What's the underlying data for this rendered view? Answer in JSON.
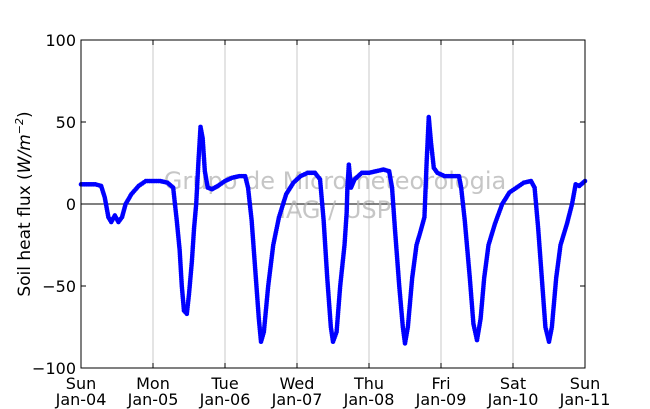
{
  "chart_data": {
    "type": "scatter",
    "title": "",
    "ylabel": "Soil heat flux (W/m⁻²)",
    "ylabel_text": "Soil heat flux (",
    "ylabel_math": "W/m",
    "ylabel_exp": "−2",
    "ylabel_close": ")",
    "xlabel": "",
    "ylim": [
      -100,
      100
    ],
    "xlim": [
      0,
      7
    ],
    "yticks": [
      {
        "value": 100,
        "label": "100"
      },
      {
        "value": 50,
        "label": "50"
      },
      {
        "value": 0,
        "label": "0"
      },
      {
        "value": -50,
        "label": "−50"
      },
      {
        "value": -100,
        "label": "−100"
      }
    ],
    "xticks": [
      {
        "value": 0,
        "day": "Sun",
        "date": "Jan-04"
      },
      {
        "value": 1,
        "day": "Mon",
        "date": "Jan-05"
      },
      {
        "value": 2,
        "day": "Tue",
        "date": "Jan-06"
      },
      {
        "value": 3,
        "day": "Wed",
        "date": "Jan-07"
      },
      {
        "value": 4,
        "day": "Thu",
        "date": "Jan-08"
      },
      {
        "value": 5,
        "day": "Fri",
        "date": "Jan-09"
      },
      {
        "value": 6,
        "day": "Sat",
        "date": "Jan-10"
      },
      {
        "value": 7,
        "day": "Sun",
        "date": "Jan-11"
      }
    ],
    "grid": "vertical",
    "zero_line": true,
    "watermark_lines": [
      "Grupo de Micrometeorologia",
      "IAG / USP"
    ],
    "series": [
      {
        "color": "#0000ff",
        "marker": "circle",
        "points": [
          [
            0.0,
            12
          ],
          [
            0.1,
            12
          ],
          [
            0.2,
            12
          ],
          [
            0.28,
            11
          ],
          [
            0.33,
            4
          ],
          [
            0.38,
            -8
          ],
          [
            0.42,
            -11
          ],
          [
            0.47,
            -7
          ],
          [
            0.52,
            -11
          ],
          [
            0.57,
            -8
          ],
          [
            0.62,
            0
          ],
          [
            0.7,
            6
          ],
          [
            0.8,
            11
          ],
          [
            0.9,
            14
          ],
          [
            1.0,
            14
          ],
          [
            1.1,
            14
          ],
          [
            1.2,
            13
          ],
          [
            1.28,
            10
          ],
          [
            1.33,
            -10
          ],
          [
            1.37,
            -28
          ],
          [
            1.4,
            -50
          ],
          [
            1.43,
            -65
          ],
          [
            1.47,
            -67
          ],
          [
            1.5,
            -55
          ],
          [
            1.54,
            -35
          ],
          [
            1.57,
            -15
          ],
          [
            1.6,
            0
          ],
          [
            1.63,
            25
          ],
          [
            1.66,
            47
          ],
          [
            1.69,
            40
          ],
          [
            1.72,
            20
          ],
          [
            1.76,
            10
          ],
          [
            1.82,
            9
          ],
          [
            1.9,
            11
          ],
          [
            2.0,
            14
          ],
          [
            2.1,
            16
          ],
          [
            2.2,
            17
          ],
          [
            2.28,
            17
          ],
          [
            2.32,
            10
          ],
          [
            2.37,
            -10
          ],
          [
            2.42,
            -40
          ],
          [
            2.47,
            -70
          ],
          [
            2.5,
            -84
          ],
          [
            2.54,
            -78
          ],
          [
            2.6,
            -50
          ],
          [
            2.67,
            -25
          ],
          [
            2.75,
            -8
          ],
          [
            2.85,
            6
          ],
          [
            2.95,
            13
          ],
          [
            3.05,
            17
          ],
          [
            3.15,
            19
          ],
          [
            3.25,
            19
          ],
          [
            3.32,
            15
          ],
          [
            3.37,
            -10
          ],
          [
            3.42,
            -45
          ],
          [
            3.47,
            -75
          ],
          [
            3.5,
            -84
          ],
          [
            3.55,
            -78
          ],
          [
            3.6,
            -50
          ],
          [
            3.66,
            -25
          ],
          [
            3.69,
            -5
          ],
          [
            3.7,
            10
          ],
          [
            3.72,
            24
          ],
          [
            3.75,
            10
          ],
          [
            3.8,
            15
          ],
          [
            3.9,
            19
          ],
          [
            4.0,
            19
          ],
          [
            4.1,
            20
          ],
          [
            4.2,
            21
          ],
          [
            4.28,
            20
          ],
          [
            4.32,
            10
          ],
          [
            4.36,
            -15
          ],
          [
            4.42,
            -50
          ],
          [
            4.47,
            -75
          ],
          [
            4.5,
            -85
          ],
          [
            4.54,
            -75
          ],
          [
            4.6,
            -45
          ],
          [
            4.66,
            -25
          ],
          [
            4.72,
            -16
          ],
          [
            4.77,
            -8
          ],
          [
            4.8,
            25
          ],
          [
            4.83,
            53
          ],
          [
            4.86,
            38
          ],
          [
            4.9,
            22
          ],
          [
            4.95,
            19
          ],
          [
            5.05,
            17
          ],
          [
            5.15,
            17
          ],
          [
            5.25,
            17
          ],
          [
            5.28,
            10
          ],
          [
            5.33,
            -10
          ],
          [
            5.4,
            -45
          ],
          [
            5.45,
            -73
          ],
          [
            5.5,
            -83
          ],
          [
            5.55,
            -70
          ],
          [
            5.6,
            -45
          ],
          [
            5.66,
            -25
          ],
          [
            5.75,
            -12
          ],
          [
            5.85,
            0
          ],
          [
            5.95,
            7
          ],
          [
            6.05,
            10
          ],
          [
            6.15,
            13
          ],
          [
            6.25,
            14
          ],
          [
            6.3,
            10
          ],
          [
            6.35,
            -15
          ],
          [
            6.4,
            -45
          ],
          [
            6.45,
            -75
          ],
          [
            6.5,
            -84
          ],
          [
            6.54,
            -75
          ],
          [
            6.6,
            -45
          ],
          [
            6.66,
            -25
          ],
          [
            6.75,
            -12
          ],
          [
            6.82,
            0
          ],
          [
            6.87,
            12
          ],
          [
            6.92,
            11
          ],
          [
            7.0,
            14
          ]
        ]
      }
    ]
  }
}
